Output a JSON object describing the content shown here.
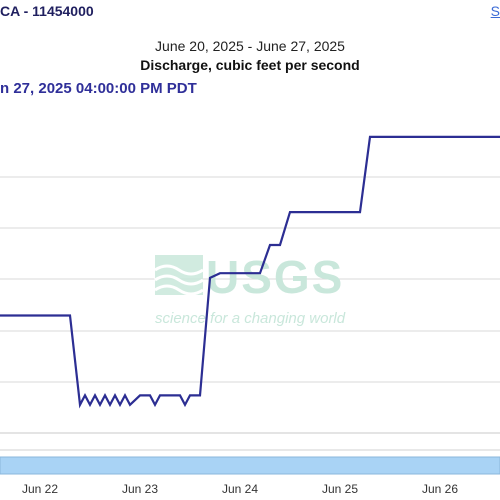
{
  "header": {
    "site_title": "CA - 11454000",
    "corner_link": "S"
  },
  "chart_header": {
    "date_range": "June 20, 2025 - June 27, 2025",
    "parameter": "Discharge, cubic feet per second",
    "tooltip_time": "n 27, 2025 04:00:00 PM PDT"
  },
  "watermark": {
    "logo_text": "USGS",
    "tagline": "science for a changing world"
  },
  "colors": {
    "series": "#2c2e93",
    "grid": "#d8d8d8",
    "navigator": "#a9d3f5",
    "watermark": "#c9e7db"
  },
  "chart_data": {
    "type": "line",
    "title": "Discharge, cubic feet per second",
    "subtitle": "June 20, 2025 - June 27, 2025",
    "xlabel": "",
    "ylabel": "",
    "grid": true,
    "categories": [
      "Jun 22",
      "Jun 23",
      "Jun 24",
      "Jun 25",
      "Jun 26"
    ],
    "x_range_days": [
      21.6,
      26.6
    ],
    "series": [
      {
        "name": "",
        "step": true,
        "x": [
          21.6,
          22.3,
          22.4,
          22.45,
          22.5,
          22.55,
          22.6,
          22.65,
          22.7,
          22.75,
          22.8,
          22.85,
          22.9,
          23.0,
          23.1,
          23.15,
          23.2,
          23.3,
          23.4,
          23.45,
          23.5,
          23.6,
          23.7,
          23.8,
          24.0,
          24.2,
          24.3,
          24.4,
          24.5,
          25.0,
          25.2,
          25.3,
          25.4,
          25.6,
          26.6
        ],
        "y": [
          5.0,
          5.0,
          3.1,
          3.3,
          3.1,
          3.3,
          3.1,
          3.3,
          3.1,
          3.3,
          3.1,
          3.3,
          3.1,
          3.3,
          3.3,
          3.1,
          3.3,
          3.3,
          3.3,
          3.1,
          3.3,
          3.3,
          5.8,
          5.9,
          5.9,
          5.9,
          6.5,
          6.5,
          7.2,
          7.2,
          7.2,
          8.8,
          8.8,
          8.8,
          8.8
        ]
      }
    ]
  }
}
